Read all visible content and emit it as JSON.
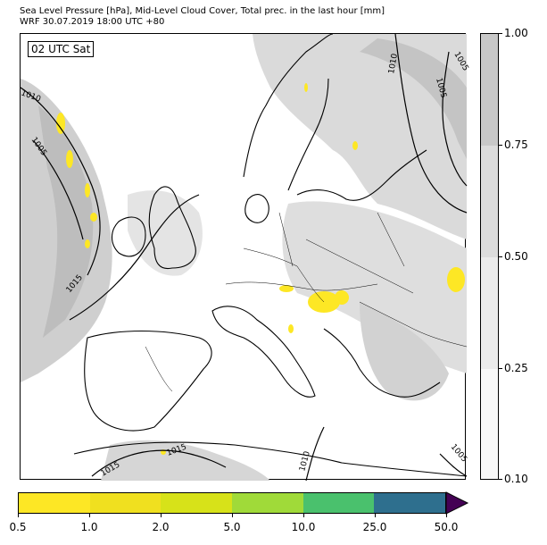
{
  "title": {
    "line1": "Sea Level Pressure [hPa], Mid-Level Cloud Cover, Total prec. in the last hour [mm]",
    "line2": "WRF 30.07.2019 18:00 UTC +80"
  },
  "map": {
    "time_label": "02 UTC Sat",
    "isobar_labels": [
      "1010",
      "1005",
      "1015",
      "1010",
      "1005",
      "1005",
      "1015",
      "1015",
      "1010",
      "1005"
    ]
  },
  "cloud_colorbar": {
    "labels": [
      "1.00",
      "0.75",
      "0.50",
      "0.25",
      "0.10"
    ],
    "colors": [
      "#c8c8c8",
      "#dcdcdc",
      "#ebebeb",
      "#f8f8f8"
    ]
  },
  "precip_colorbar": {
    "labels": [
      "0.5",
      "1.0",
      "2.0",
      "5.0",
      "10.0",
      "25.0",
      "50.0"
    ],
    "colors": [
      "#fde725",
      "#f0e01f",
      "#d7e219",
      "#a0da39",
      "#4ac16d",
      "#2e6f8e",
      "#3b528b"
    ],
    "extend_color": "#440154"
  }
}
